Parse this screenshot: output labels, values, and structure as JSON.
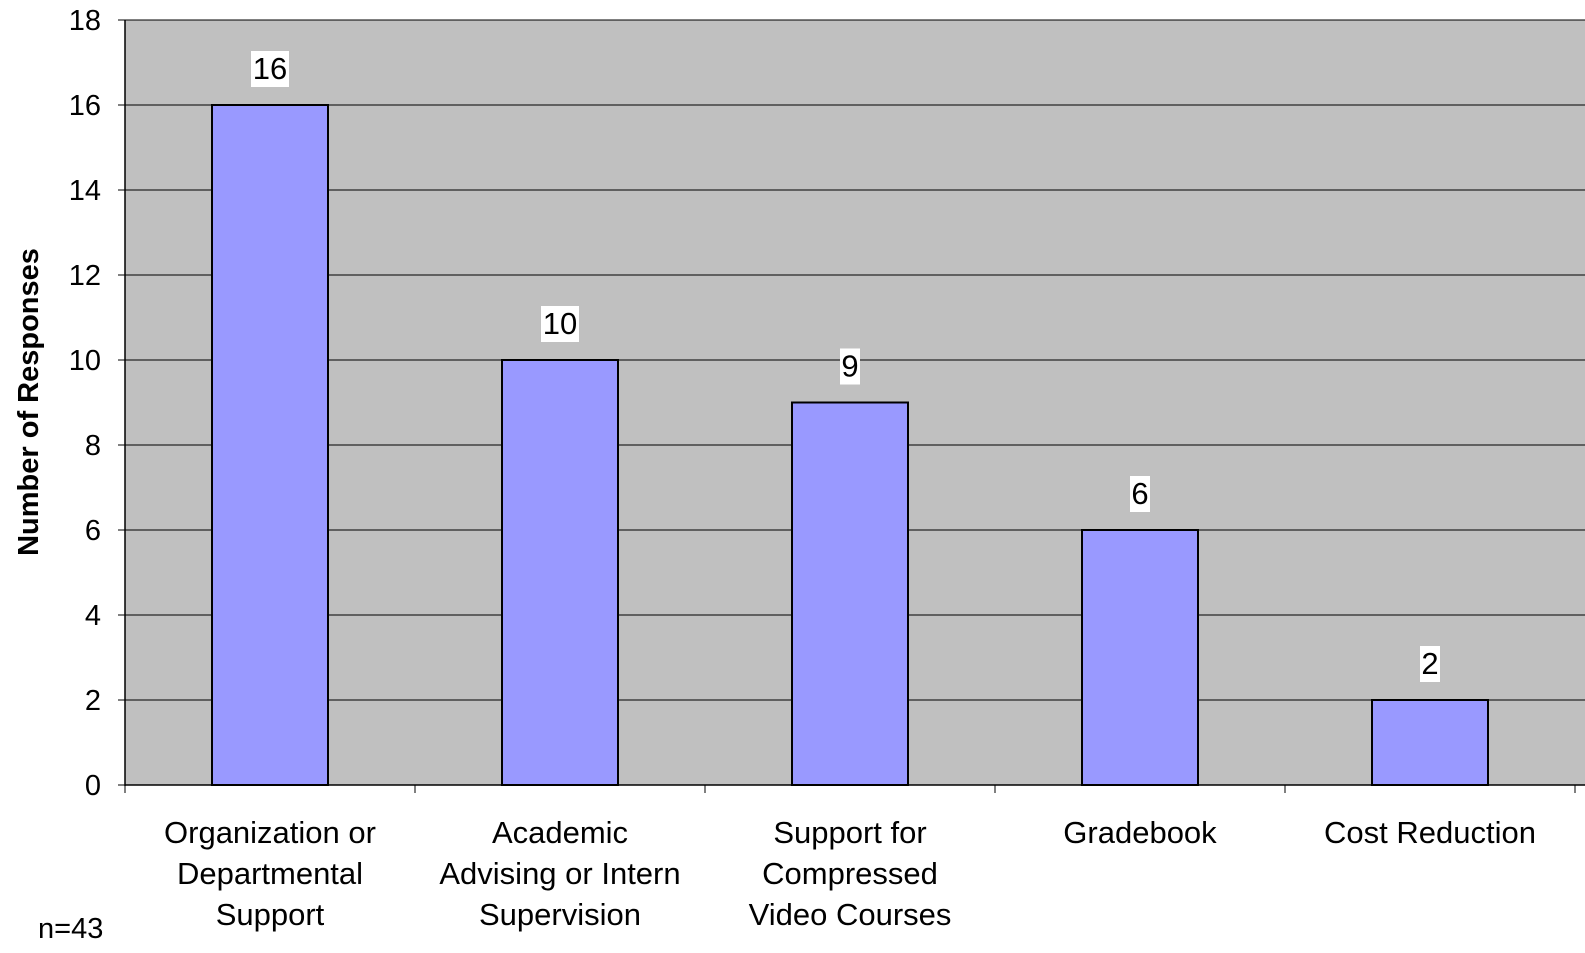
{
  "chart_data": {
    "type": "bar",
    "categories": [
      [
        "Organization or",
        "Departmental",
        "Support"
      ],
      [
        "Academic",
        "Advising or Intern",
        "Supervision"
      ],
      [
        "Support for",
        "Compressed",
        "Video Courses"
      ],
      [
        "Gradebook"
      ],
      [
        "Cost Reduction"
      ]
    ],
    "values": [
      16,
      10,
      9,
      6,
      2
    ],
    "data_labels": [
      "16",
      "10",
      "9",
      "6",
      "2"
    ],
    "xlabel": "",
    "ylabel": "Number of Responses",
    "ylim": [
      0,
      18
    ],
    "yticks": [
      "0",
      "2",
      "4",
      "6",
      "8",
      "10",
      "12",
      "14",
      "16",
      "18"
    ],
    "grid": true,
    "legend": "none",
    "note": "n=43"
  },
  "colors": {
    "plot_background": "#c0c0c0",
    "bar_fill": "#9999ff",
    "bar_stroke": "#000000",
    "gridline": "#000000",
    "label_background": "#ffffff"
  }
}
